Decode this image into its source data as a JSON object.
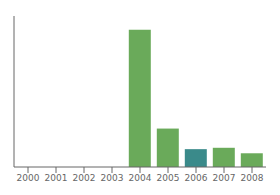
{
  "chart_data": {
    "type": "bar",
    "categories": [
      "2000",
      "2001",
      "2002",
      "2003",
      "2004",
      "2005",
      "2006",
      "2007",
      "2008"
    ],
    "values": [
      0,
      0,
      0,
      0,
      100,
      28,
      13,
      14,
      10
    ],
    "colors": [
      "#6aaa5a",
      "#6aaa5a",
      "#6aaa5a",
      "#6aaa5a",
      "#6aaa5a",
      "#6aaa5a",
      "#3a8a8a",
      "#6aaa5a",
      "#6aaa5a"
    ],
    "ylim": [
      0,
      110
    ],
    "grid": false,
    "tick_labels": "x"
  }
}
